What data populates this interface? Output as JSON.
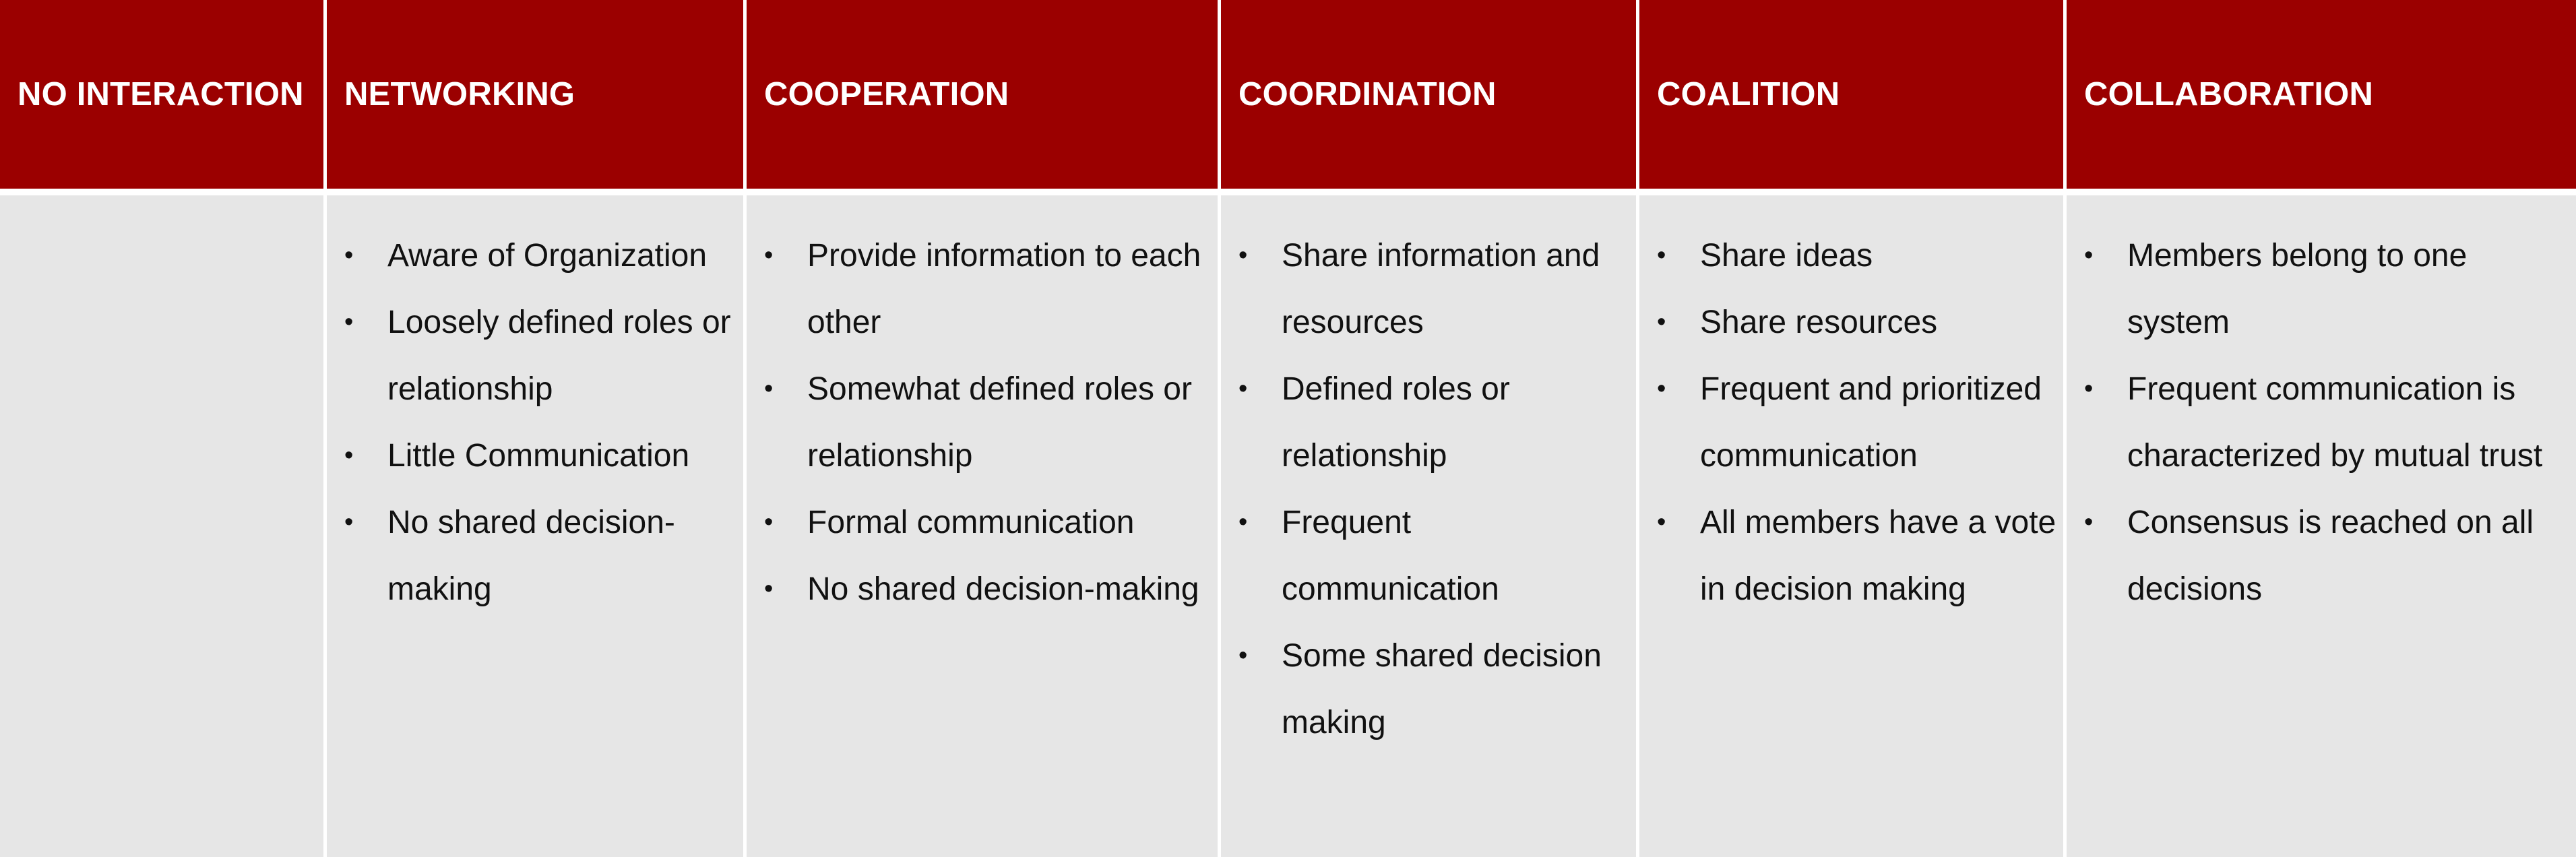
{
  "columns": [
    {
      "header": "NO INTERACTION",
      "items": []
    },
    {
      "header": "NETWORKING",
      "items": [
        "Aware of Organization",
        "Loosely defined roles or relationship",
        "Little Communication",
        "No shared decision-making"
      ]
    },
    {
      "header": "COOPERATION",
      "items": [
        "Provide  information to each other",
        "Somewhat defined roles or relationship",
        "Formal communication",
        "No shared decision-making"
      ]
    },
    {
      "header": "COORDINATION",
      "items": [
        "Share information and resources",
        "Defined roles or relationship",
        "Frequent communication",
        "Some shared decision making"
      ]
    },
    {
      "header": "COALITION",
      "items": [
        "Share ideas",
        "Share resources",
        "Frequent and prioritized communication",
        "All members have a vote in decision making"
      ]
    },
    {
      "header": "COLLABORATION",
      "items": [
        "Members belong to one system",
        "Frequent  communication is characterized by mutual trust",
        "Consensus is reached on all decisions"
      ]
    }
  ],
  "bullet_glyph": "•",
  "colors": {
    "header_bg": "#9b0000",
    "header_text": "#ffffff",
    "body_bg": "#e6e6e6",
    "body_text": "#111111"
  }
}
